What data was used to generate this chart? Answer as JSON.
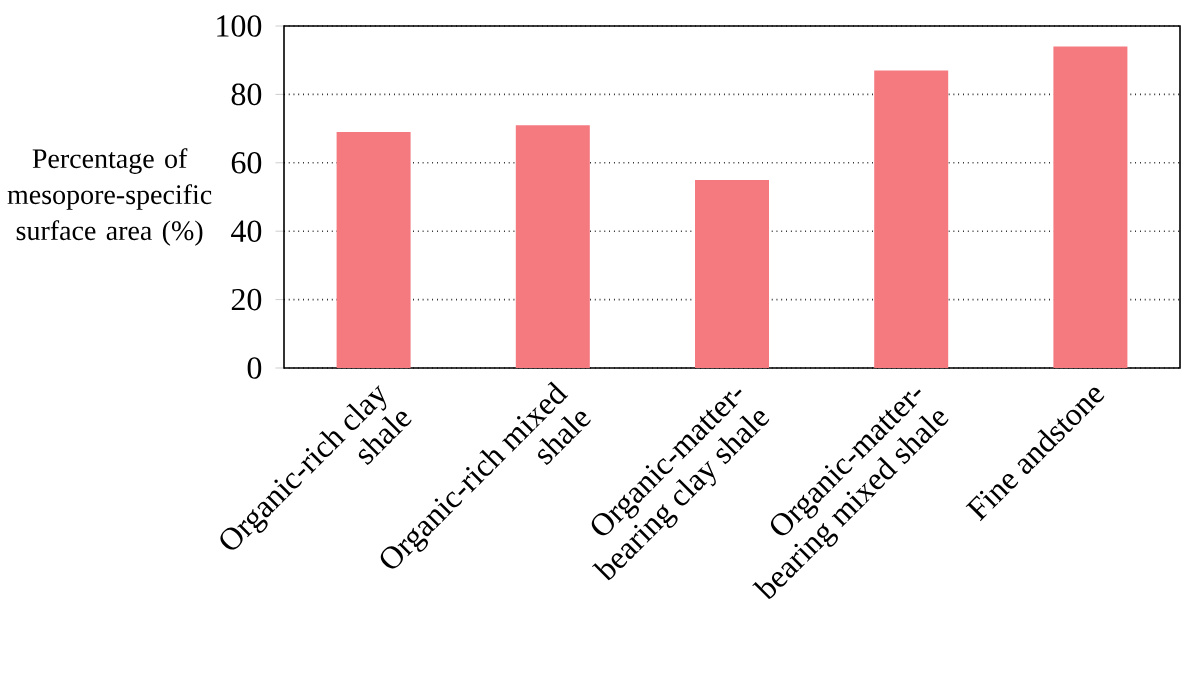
{
  "chart_data": {
    "type": "bar",
    "ylabel": "Percentage of mesopore-specific surface area (%)",
    "categories": [
      "Organic-rich clay shale",
      "Organic-rich mixed shale",
      "Organic-matter-bearing clay shale",
      "Organic-matter-bearing mixed shale",
      "Fine andstone"
    ],
    "values": [
      69,
      71,
      55,
      87,
      94
    ],
    "color": "#f47a80",
    "ylim": [
      0,
      100
    ],
    "yticks": [
      0,
      20,
      40,
      60,
      80,
      100
    ],
    "grid": "y"
  }
}
